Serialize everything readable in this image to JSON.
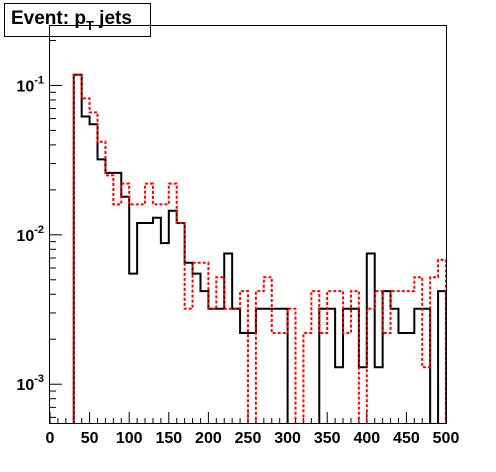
{
  "chart_data": {
    "type": "step",
    "title": {
      "main": "Event: p",
      "sub": "T",
      "suffix": " jets"
    },
    "xlabel": "",
    "ylabel": "",
    "xlim": [
      0,
      500
    ],
    "ylim": [
      0.00055,
      0.25
    ],
    "y_scale": "log",
    "bin_width": 10,
    "x_ticks": [
      0,
      50,
      100,
      150,
      200,
      250,
      300,
      350,
      400,
      450,
      500
    ],
    "x_tick_labels": [
      "0",
      "50",
      "100",
      "150",
      "200",
      "250",
      "300",
      "350",
      "400",
      "450",
      "500"
    ],
    "y_ticks": [
      0.001,
      0.01,
      0.1
    ],
    "y_tick_labels": [
      {
        "base": "10",
        "exp": "-3"
      },
      {
        "base": "10",
        "exp": "-2"
      },
      {
        "base": "10",
        "exp": "-1"
      }
    ],
    "grid": false,
    "legend": "none",
    "series": [
      {
        "color": "#000000",
        "style": "solid",
        "values": [
          0,
          0,
          0,
          0.118,
          0.062,
          0.055,
          0.032,
          0.026,
          0.026,
          0.018,
          0.0055,
          0.012,
          0.012,
          0.013,
          0.0088,
          0.0145,
          0.012,
          0.0065,
          0.0055,
          0.0042,
          0.0032,
          0.0032,
          0.0075,
          0.0032,
          0.0022,
          0.0022,
          0.0032,
          0.0032,
          0.0032,
          0.0032,
          0,
          0,
          0,
          0,
          0.0032,
          0.0032,
          0.0013,
          0.0032,
          0.0032,
          0.0013,
          0.0075,
          0.0013,
          0.0042,
          0.0032,
          0.0022,
          0.0022,
          0.0032,
          0.0032,
          0,
          0.0042
        ]
      },
      {
        "color": "#ff0000",
        "style": "dashed",
        "values": [
          0,
          0,
          0,
          0.118,
          0.082,
          0.066,
          0.042,
          0.025,
          0.016,
          0.022,
          0.016,
          0.016,
          0.022,
          0.016,
          0.016,
          0.022,
          0.012,
          0.0032,
          0.0065,
          0.0065,
          0.0032,
          0.0052,
          0.0032,
          0.0032,
          0.0042,
          0,
          0.0042,
          0.0052,
          0.0022,
          0.0022,
          0.0032,
          0,
          0.0022,
          0.0042,
          0.0022,
          0.0042,
          0.0042,
          0.0022,
          0.0042,
          0,
          0.0032,
          0.0042,
          0.0022,
          0.0042,
          0.0042,
          0.0042,
          0.0052,
          0.0013,
          0.0052,
          0.0068
        ]
      }
    ]
  }
}
